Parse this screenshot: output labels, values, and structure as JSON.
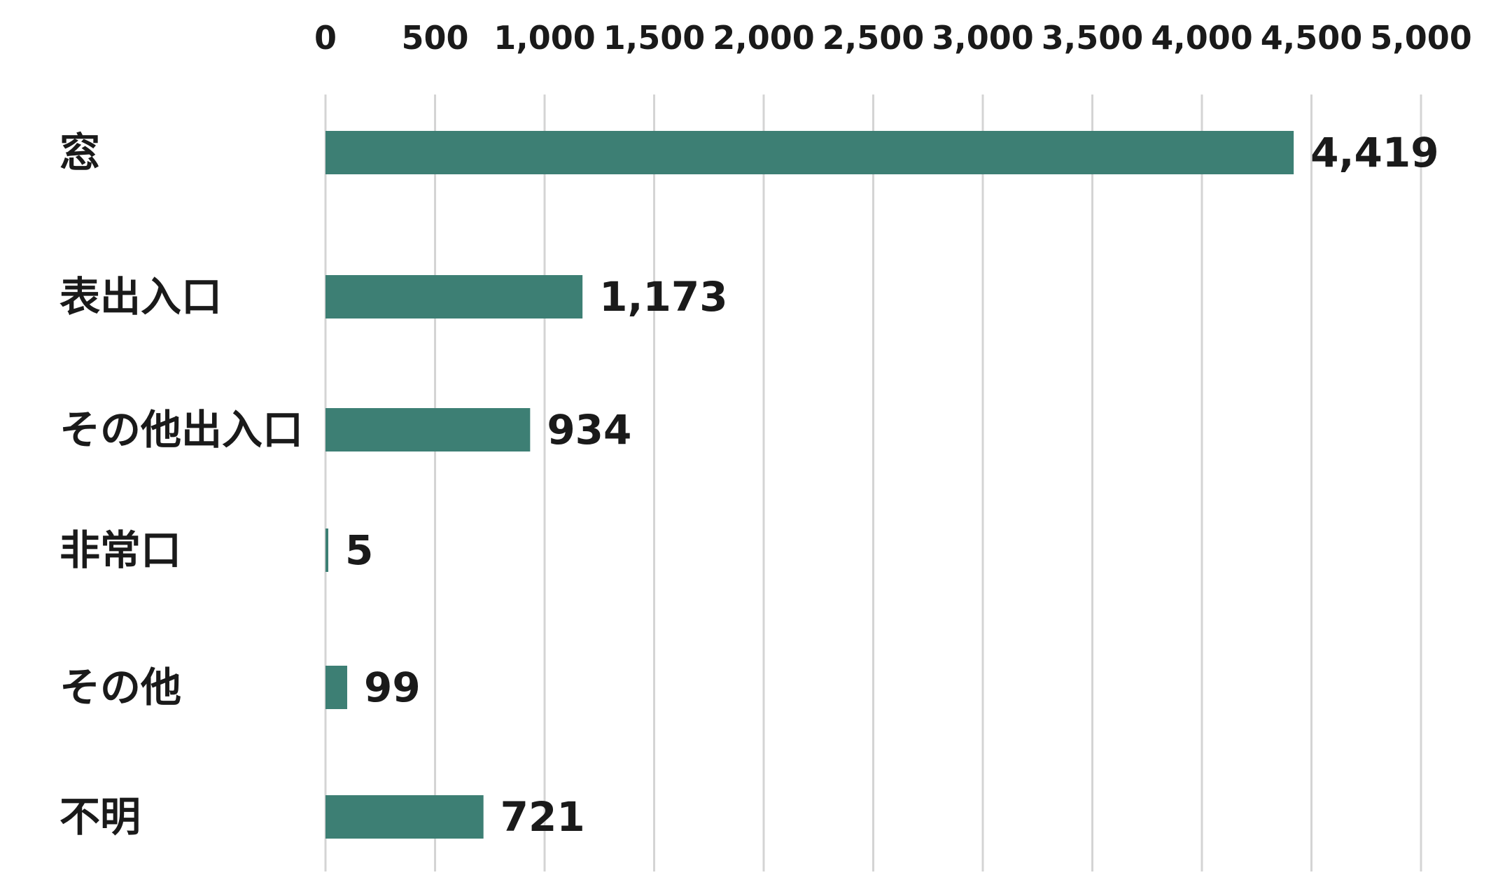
{
  "chart_data": {
    "type": "bar",
    "orientation": "horizontal",
    "categories": [
      "窓",
      "表出入口",
      "その他出入口",
      "非常口",
      "その他",
      "不明"
    ],
    "values": [
      4419,
      1173,
      934,
      5,
      99,
      721
    ],
    "value_labels": [
      "4,419",
      "1,173",
      "934",
      "5",
      "99",
      "721"
    ],
    "xlim": [
      0,
      5000
    ],
    "x_ticks": [
      0,
      500,
      1000,
      1500,
      2000,
      2500,
      3000,
      3500,
      4000,
      4500,
      5000
    ],
    "x_tick_labels": [
      "0",
      "500",
      "1,000",
      "1,500",
      "2,000",
      "2,500",
      "3,000",
      "3,500",
      "4,000",
      "4,500",
      "5,000"
    ],
    "x_axis_position": "top",
    "grid": true,
    "legend": false,
    "bar_color": "#3d7f74",
    "grid_color": "#d4d4d4",
    "text_color": "#1a1a1a"
  }
}
